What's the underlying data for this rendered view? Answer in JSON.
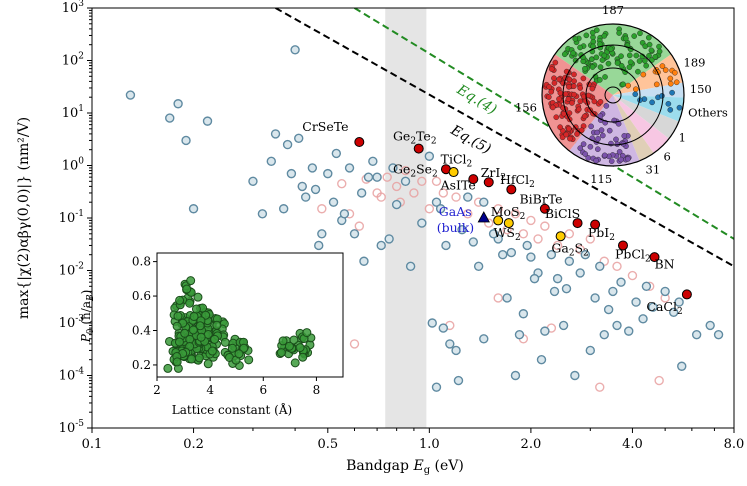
{
  "chart_data": {
    "type": "scatter",
    "xlabel_main": "Bandgap E",
    "xlabel_sub": "g",
    "xlabel_unit": " (eV)",
    "ylabel": "max{|χ(2)αβγ(0,0)|} (nm²/V)",
    "xscale": "log",
    "yscale": "log",
    "xlim": [
      0.1,
      8.0
    ],
    "ylim": [
      1e-05,
      1000
    ],
    "x_ticks": [
      {
        "v": 0.1,
        "label": "0.1"
      },
      {
        "v": 0.2,
        "label": "0.2"
      },
      {
        "v": 0.5,
        "label": "0.5"
      },
      {
        "v": 1.0,
        "label": "1.0"
      },
      {
        "v": 2.0,
        "label": "2.0"
      },
      {
        "v": 4.0,
        "label": "4.0"
      },
      {
        "v": 8.0,
        "label": "8.0"
      }
    ],
    "y_ticks": [
      {
        "v": 1e-05,
        "base": "10",
        "exp": "-5"
      },
      {
        "v": 0.0001,
        "base": "10",
        "exp": "-4"
      },
      {
        "v": 0.001,
        "base": "10",
        "exp": "-3"
      },
      {
        "v": 0.01,
        "base": "10",
        "exp": "-2"
      },
      {
        "v": 0.1,
        "base": "10",
        "exp": "-1"
      },
      {
        "v": 1,
        "base": "10",
        "exp": "0"
      },
      {
        "v": 10,
        "base": "10",
        "exp": "1"
      },
      {
        "v": 100,
        "base": "10",
        "exp": "2"
      },
      {
        "v": 1000,
        "base": "10",
        "exp": "3"
      }
    ],
    "shaded_band": [
      0.74,
      0.98
    ],
    "lines": [
      {
        "name": "Eq.(4)",
        "color": "#228B22",
        "x": [
          0.6,
          8.0
        ],
        "y": [
          1000,
          0.04
        ],
        "label_at": [
          1.2,
          25
        ]
      },
      {
        "name": "Eq.(5)",
        "color": "#000000",
        "x": [
          0.35,
          8.0
        ],
        "y": [
          1000,
          0.012
        ],
        "label_at": [
          1.15,
          4.2
        ]
      }
    ],
    "highlighted": [
      {
        "name": "CrSeTe",
        "sub": "",
        "x": 0.62,
        "y": 2.8,
        "color": "#cc0000",
        "lx": 0.42,
        "ly": 4.5
      },
      {
        "name": "Ge",
        "sub": "2",
        "tail": "Te",
        "sub2": "2",
        "x": 0.93,
        "y": 2.1,
        "color": "#cc0000",
        "lx": 0.78,
        "ly": 3.0
      },
      {
        "name": "TiCl",
        "sub": "2",
        "x": 1.12,
        "y": 0.85,
        "color": "#cc0000",
        "lx": 1.08,
        "ly": 1.1
      },
      {
        "name": "Ge",
        "sub": "2",
        "tail": "Se",
        "sub2": "2",
        "x": 1.18,
        "y": 0.75,
        "color": "#ffcc00",
        "lx": 0.78,
        "ly": 0.7
      },
      {
        "name": "ZrI",
        "sub": "2",
        "x": 1.5,
        "y": 0.48,
        "color": "#cc0000",
        "lx": 1.42,
        "ly": 0.6
      },
      {
        "name": "AsITe",
        "sub": "",
        "x": 1.35,
        "y": 0.55,
        "color": "#cc0000",
        "lx": 1.08,
        "ly": 0.35
      },
      {
        "name": "HfCl",
        "sub": "2",
        "x": 1.75,
        "y": 0.35,
        "color": "#cc0000",
        "lx": 1.62,
        "ly": 0.44
      },
      {
        "name": "BiBrTe",
        "sub": "",
        "x": 2.2,
        "y": 0.15,
        "color": "#cc0000",
        "lx": 1.85,
        "ly": 0.19
      },
      {
        "name": "MoS",
        "sub": "2",
        "x": 1.6,
        "y": 0.09,
        "color": "#ffcc00",
        "lx": 1.52,
        "ly": 0.11
      },
      {
        "name": "BiClS",
        "sub": "",
        "x": 2.75,
        "y": 0.08,
        "color": "#cc0000",
        "lx": 2.2,
        "ly": 0.1
      },
      {
        "name": "WS",
        "sub": "2",
        "x": 1.72,
        "y": 0.08,
        "color": "#ffcc00",
        "lx": 1.55,
        "ly": 0.043
      },
      {
        "name": "Ga",
        "sub": "2",
        "tail": "S",
        "sub2": "2",
        "x": 2.45,
        "y": 0.045,
        "color": "#ffcc00",
        "lx": 2.3,
        "ly": 0.022
      },
      {
        "name": "PbI",
        "sub": "2",
        "x": 3.1,
        "y": 0.075,
        "color": "#cc0000",
        "lx": 2.95,
        "ly": 0.043
      },
      {
        "name": "PbCl",
        "sub": "2",
        "x": 3.75,
        "y": 0.03,
        "color": "#cc0000",
        "lx": 3.55,
        "ly": 0.017
      },
      {
        "name": "BN",
        "sub": "",
        "x": 4.65,
        "y": 0.018,
        "color": "#cc0000",
        "lx": 4.65,
        "ly": 0.011
      },
      {
        "name": "CaCl",
        "sub": "2",
        "x": 5.8,
        "y": 0.0035,
        "color": "#cc0000",
        "lx": 4.4,
        "ly": 0.0017
      }
    ],
    "gaas": {
      "line1": "GaAs",
      "line2": "(bulk)",
      "x": 1.45,
      "y": 0.1,
      "color": "#00008b"
    },
    "blue_gray_points": [
      [
        0.13,
        22
      ],
      [
        0.17,
        8
      ],
      [
        0.18,
        15
      ],
      [
        0.19,
        3
      ],
      [
        0.22,
        7
      ],
      [
        0.25,
        0.008
      ],
      [
        0.2,
        0.15
      ],
      [
        0.27,
        0.0025
      ],
      [
        0.3,
        0.5
      ],
      [
        0.35,
        4
      ],
      [
        0.37,
        0.15
      ],
      [
        0.38,
        2.5
      ],
      [
        0.4,
        160
      ],
      [
        0.42,
        0.4
      ],
      [
        0.45,
        0.9
      ],
      [
        0.47,
        0.03
      ],
      [
        0.5,
        0.7
      ],
      [
        0.52,
        0.2
      ],
      [
        0.55,
        0.09
      ],
      [
        0.6,
        0.05
      ],
      [
        0.63,
        0.3
      ],
      [
        0.68,
        1.2
      ],
      [
        0.7,
        0.6
      ],
      [
        0.72,
        0.03
      ],
      [
        0.78,
        0.9
      ],
      [
        0.85,
        0.5
      ],
      [
        1.0,
        1.5
      ],
      [
        1.05,
        0.2
      ],
      [
        1.08,
        0.15
      ],
      [
        1.02,
        0.001
      ],
      [
        1.1,
        0.0008
      ],
      [
        1.15,
        0.0004
      ],
      [
        1.2,
        0.0003
      ],
      [
        1.3,
        0.25
      ],
      [
        1.45,
        0.2
      ],
      [
        1.6,
        0.04
      ],
      [
        1.7,
        0.003
      ],
      [
        1.8,
        0.0001
      ],
      [
        1.9,
        0.0015
      ],
      [
        2.0,
        0.018
      ],
      [
        2.1,
        0.009
      ],
      [
        2.2,
        0.0007
      ],
      [
        2.4,
        0.007
      ],
      [
        2.5,
        0.0009
      ],
      [
        2.7,
        0.0001
      ],
      [
        2.8,
        0.009
      ],
      [
        3.0,
        0.0003
      ],
      [
        3.1,
        0.003
      ],
      [
        3.3,
        0.0006
      ],
      [
        3.5,
        0.004
      ],
      [
        3.6,
        0.0009
      ],
      [
        3.9,
        0.0007
      ],
      [
        4.1,
        0.0025
      ],
      [
        4.3,
        0.0012
      ],
      [
        4.6,
        0.002
      ],
      [
        5.0,
        0.004
      ],
      [
        5.3,
        0.0016
      ],
      [
        5.6,
        0.00015
      ],
      [
        6.2,
        0.0006
      ],
      [
        6.8,
        0.0009
      ],
      [
        7.2,
        0.0006
      ],
      [
        0.43,
        0.25
      ],
      [
        0.48,
        0.05
      ],
      [
        0.56,
        0.12
      ],
      [
        0.64,
        0.015
      ],
      [
        0.76,
        0.04
      ],
      [
        0.88,
        0.012
      ],
      [
        1.25,
        0.06
      ],
      [
        1.35,
        0.035
      ],
      [
        1.55,
        0.05
      ],
      [
        1.75,
        0.022
      ],
      [
        1.95,
        0.03
      ],
      [
        2.3,
        0.02
      ],
      [
        2.6,
        0.015
      ],
      [
        2.9,
        0.02
      ],
      [
        3.2,
        0.012
      ],
      [
        3.7,
        0.006
      ],
      [
        4.4,
        0.005
      ],
      [
        5.5,
        0.0025
      ],
      [
        1.65,
        0.02
      ],
      [
        2.05,
        0.007
      ],
      [
        2.35,
        0.004
      ],
      [
        2.55,
        0.0045
      ],
      [
        3.4,
        0.0018
      ],
      [
        1.05,
        6e-05
      ],
      [
        1.22,
        8e-05
      ],
      [
        1.45,
        0.0005
      ],
      [
        0.32,
        0.12
      ],
      [
        0.34,
        1.2
      ],
      [
        0.39,
        0.7
      ],
      [
        0.41,
        3.3
      ],
      [
        0.46,
        0.35
      ],
      [
        0.53,
        1.7
      ],
      [
        0.58,
        0.9
      ],
      [
        0.66,
        0.6
      ],
      [
        0.8,
        0.18
      ],
      [
        0.95,
        0.08
      ],
      [
        1.12,
        0.03
      ],
      [
        1.4,
        0.012
      ],
      [
        1.85,
        0.0006
      ],
      [
        2.15,
        0.0002
      ]
    ],
    "pink_points": [
      [
        0.42,
        0.4
      ],
      [
        0.48,
        0.15
      ],
      [
        0.55,
        0.45
      ],
      [
        0.58,
        0.12
      ],
      [
        0.62,
        0.07
      ],
      [
        0.65,
        0.55
      ],
      [
        0.7,
        0.3
      ],
      [
        0.72,
        0.25
      ],
      [
        0.75,
        0.6
      ],
      [
        0.8,
        0.4
      ],
      [
        0.82,
        0.2
      ],
      [
        0.85,
        0.8
      ],
      [
        0.9,
        0.3
      ],
      [
        0.95,
        0.5
      ],
      [
        1.0,
        0.15
      ],
      [
        1.05,
        0.5
      ],
      [
        1.1,
        0.3
      ],
      [
        1.2,
        0.25
      ],
      [
        1.3,
        0.12
      ],
      [
        1.4,
        0.2
      ],
      [
        1.5,
        0.08
      ],
      [
        1.6,
        0.15
      ],
      [
        1.7,
        0.06
      ],
      [
        1.8,
        0.12
      ],
      [
        1.9,
        0.05
      ],
      [
        2.0,
        0.09
      ],
      [
        2.1,
        0.04
      ],
      [
        2.2,
        0.07
      ],
      [
        2.4,
        0.03
      ],
      [
        2.6,
        0.05
      ],
      [
        2.8,
        0.025
      ],
      [
        3.0,
        0.04
      ],
      [
        3.3,
        0.015
      ],
      [
        3.6,
        0.012
      ],
      [
        4.0,
        0.008
      ],
      [
        4.5,
        0.005
      ],
      [
        5.0,
        0.003
      ],
      [
        1.15,
        0.0009
      ],
      [
        1.6,
        0.003
      ],
      [
        2.3,
        0.0008
      ],
      [
        3.2,
        6e-05
      ],
      [
        0.52,
        0.009
      ],
      [
        0.6,
        0.0004
      ],
      [
        1.9,
        0.0005
      ],
      [
        4.8,
        8e-05
      ]
    ],
    "inset": {
      "type": "scatter",
      "xlabel": "Lattice constant (Å)",
      "ylabel": "P",
      "ylabel_sub": "0",
      "ylabel_unit": " (ħ/a",
      "ylabel_unit_sub": "B",
      "xlim": [
        2,
        9
      ],
      "ylim": [
        0.13,
        0.85
      ],
      "x_ticks": [
        "2",
        "4",
        "6",
        "8"
      ],
      "y_ticks": [
        "0.2",
        "0.4",
        "0.6",
        "0.8"
      ],
      "point_color": "#3a9a3a"
    },
    "wheel": {
      "segments": [
        {
          "label": "187",
          "color": "#98d898",
          "start": -55,
          "end": 55
        },
        {
          "label": "189",
          "color": "#ffc49a",
          "start": 55,
          "end": 80
        },
        {
          "label": "150",
          "color": "#c7dff2",
          "start": 80,
          "end": 92
        },
        {
          "label": "Others",
          "color": "#9cdced",
          "start": 92,
          "end": 112
        },
        {
          "label": "1",
          "color": "#d7d7d7",
          "start": 112,
          "end": 128
        },
        {
          "label": "6",
          "color": "#f7c7e3",
          "start": 128,
          "end": 145
        },
        {
          "label": "31",
          "color": "#e0cfb7",
          "start": 145,
          "end": 158
        },
        {
          "label": "115",
          "color": "#cfb7e3",
          "start": 158,
          "end": 218
        },
        {
          "label": "156",
          "color": "#f09393",
          "start": 218,
          "end": 305
        }
      ],
      "dot_colors": {
        "green": "#2ca02c",
        "red": "#d62728",
        "purple": "#7b52ab",
        "orange": "#ff7f0e",
        "blue": "#1f77b4"
      }
    }
  }
}
